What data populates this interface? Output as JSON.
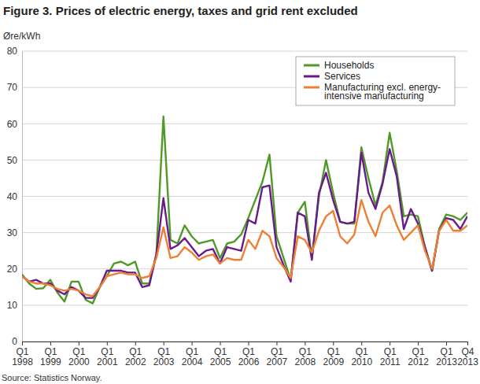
{
  "chart_data": {
    "type": "line",
    "title": "Figure 3. Prices of electric energy, taxes and grid rent excluded",
    "y_label": "Øre/kWh",
    "source": "Source: Statistics Norway.",
    "categories": [
      "Q1 1998",
      null,
      null,
      null,
      "Q1 1999",
      null,
      null,
      null,
      "Q1 2000",
      null,
      null,
      null,
      "Q1 2001",
      null,
      null,
      null,
      "Q1 2002",
      null,
      null,
      null,
      "Q1 2003",
      null,
      null,
      null,
      "Q1 2004",
      null,
      null,
      null,
      "Q1 2005",
      null,
      null,
      null,
      "Q1 2006",
      null,
      null,
      null,
      "Q1 2007",
      null,
      null,
      null,
      "Q1 2008",
      null,
      null,
      null,
      "Q1 2009",
      null,
      null,
      null,
      "Q1 2010",
      null,
      null,
      null,
      "Q1 2011",
      null,
      null,
      null,
      "Q1 2012",
      null,
      null,
      null,
      "Q1 2013",
      null,
      null,
      "Q4 2013"
    ],
    "series": [
      {
        "name": "Households",
        "color": "#4f9a26",
        "values": [
          18.5,
          16,
          14.5,
          14.7,
          17,
          13.5,
          11,
          16.5,
          16.5,
          11.5,
          10.5,
          15,
          18,
          21.5,
          22,
          21,
          22,
          16,
          16,
          24,
          62,
          28,
          27,
          32,
          29,
          27,
          27.5,
          28,
          23,
          27,
          27.5,
          29.5,
          34,
          39,
          44,
          51.5,
          29,
          23,
          17,
          35.5,
          38.5,
          23,
          40,
          50,
          41,
          33,
          32.5,
          32.5,
          53.5,
          45,
          37.5,
          44,
          57.5,
          47,
          34.5,
          35,
          34.5,
          26,
          19.5,
          31,
          35,
          34.5,
          33.5,
          35.5
        ]
      },
      {
        "name": "Services",
        "color": "#6b1a8c",
        "values": [
          18,
          16.5,
          17,
          16,
          16,
          14,
          13,
          15,
          14,
          12,
          12,
          15,
          19.5,
          19.5,
          19.5,
          19,
          19,
          15,
          15.5,
          24,
          39.5,
          25.5,
          26.5,
          28.5,
          26,
          23.5,
          25,
          25.5,
          21.5,
          26,
          25.5,
          25,
          33.5,
          32.5,
          42.5,
          43,
          26,
          21,
          16.5,
          35.5,
          34.5,
          22.5,
          41,
          46.5,
          39,
          33,
          32.5,
          33,
          52,
          41,
          36.5,
          43.5,
          53,
          45.5,
          31,
          36.5,
          32.5,
          26,
          19.5,
          30.5,
          34,
          33.5,
          31,
          34.5
        ]
      },
      {
        "name": "Manufacturing excl. energy-intensive manufacturing",
        "color": "#ef7f35",
        "values": [
          18,
          16.5,
          16,
          16,
          15.5,
          14.5,
          14,
          14.5,
          14,
          13,
          12.5,
          15,
          18,
          18.5,
          19,
          18.5,
          18.5,
          17.5,
          18,
          23,
          31.5,
          23,
          23.5,
          26,
          24.5,
          22.5,
          23.5,
          24,
          21.5,
          23,
          22.5,
          22.5,
          28,
          25.5,
          30.5,
          29,
          23,
          20.5,
          17.5,
          29,
          28,
          24.5,
          30.5,
          34.5,
          36,
          29,
          27,
          29.5,
          39,
          33,
          29,
          35.5,
          37.5,
          32,
          28,
          30,
          32,
          25,
          20,
          30.5,
          33.5,
          30.5,
          30.5,
          32
        ]
      }
    ],
    "ylim": [
      0,
      80
    ],
    "yticks": [
      0,
      10,
      20,
      30,
      40,
      50,
      60,
      70,
      80
    ],
    "grid": true,
    "legend": "top-right"
  }
}
